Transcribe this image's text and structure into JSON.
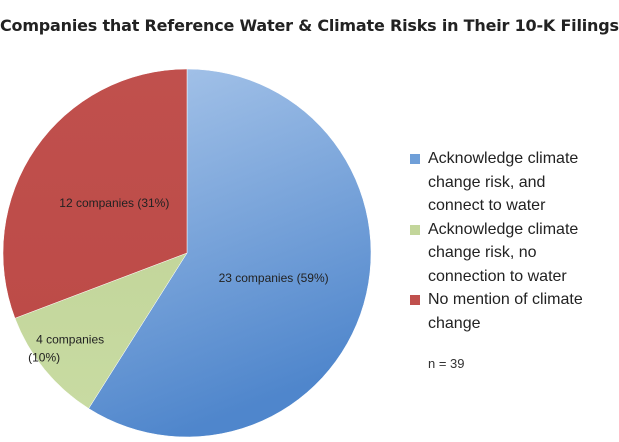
{
  "chart_data": {
    "type": "pie",
    "title": "Companies that Reference Water & Climate Risks in Their 10-K Filings",
    "slices": [
      {
        "name": "Acknowledge climate change risk, and connect to water",
        "legend_lines": [
          "Acknowledge climate",
          "change risk, and",
          "connect to water"
        ],
        "value": 23,
        "percent": 59,
        "label": "23 companies (59%)",
        "color": "#6f9fd8"
      },
      {
        "name": "Acknowledge climate change risk, no connection to water",
        "legend_lines": [
          "Acknowledge climate",
          "change risk, no",
          "connection to water"
        ],
        "value": 4,
        "percent": 10,
        "label": "4 companies",
        "label_sub": "(10%)",
        "color": "#c3d69b"
      },
      {
        "name": "No mention of climate change",
        "legend_lines": [
          "No mention of climate",
          "change"
        ],
        "value": 12,
        "percent": 31,
        "label": "12 companies (31%)",
        "color": "#c0504d"
      }
    ],
    "legend_position": "right",
    "note": "n = 39"
  }
}
